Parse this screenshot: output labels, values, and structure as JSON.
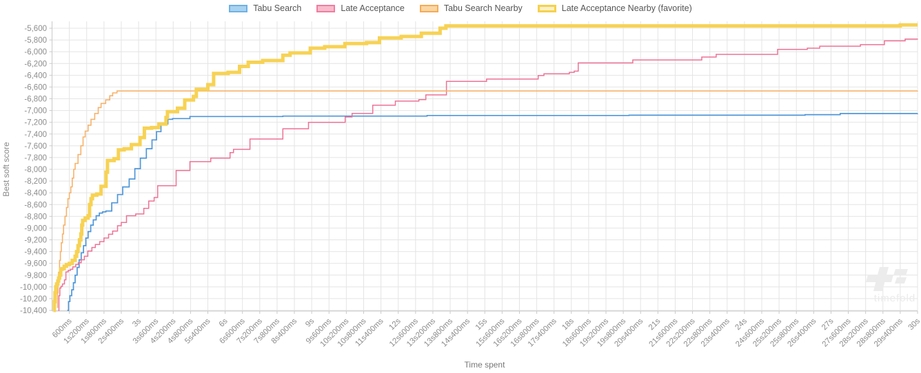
{
  "chart_data": {
    "type": "line",
    "title": "",
    "xlabel": "Time spent",
    "ylabel": "Best soft score",
    "grid": true,
    "legend_position": "top",
    "xlim_ms": [
      0,
      30000
    ],
    "ylim": [
      -10400,
      -5600
    ],
    "y_tick_step": 200,
    "y_ticks": [
      "-5,600",
      "-5,800",
      "-6,000",
      "-6,200",
      "-6,400",
      "-6,600",
      "-6,800",
      "-7,000",
      "-7,200",
      "-7,400",
      "-7,600",
      "-7,800",
      "-8,000",
      "-8,200",
      "-8,400",
      "-8,600",
      "-8,800",
      "-9,000",
      "-9,200",
      "-9,400",
      "-9,600",
      "-9,800",
      "-10,000",
      "-10,200",
      "-10,400"
    ],
    "y_tick_values": [
      -5600,
      -5800,
      -6000,
      -6200,
      -6400,
      -6600,
      -6800,
      -7000,
      -7200,
      -7400,
      -7600,
      -7800,
      -8000,
      -8200,
      -8400,
      -8600,
      -8800,
      -9000,
      -9200,
      -9400,
      -9600,
      -9800,
      -10000,
      -10200,
      -10400
    ],
    "x_ticks": [
      "600ms",
      "1s200ms",
      "1s800ms",
      "2s400ms",
      "3s",
      "3s600ms",
      "4s200ms",
      "4s800ms",
      "5s400ms",
      "6s",
      "6s600ms",
      "7s200ms",
      "7s800ms",
      "8s400ms",
      "9s",
      "9s600ms",
      "10s200ms",
      "10s800ms",
      "11s400ms",
      "12s",
      "12s600ms",
      "13s200ms",
      "13s800ms",
      "14s400ms",
      "15s",
      "15s600ms",
      "16s200ms",
      "16s800ms",
      "17s400ms",
      "18s",
      "18s600ms",
      "19s200ms",
      "19s800ms",
      "20s400ms",
      "21s",
      "21s600ms",
      "22s200ms",
      "22s800ms",
      "23s400ms",
      "24s",
      "24s600ms",
      "25s200ms",
      "25s800ms",
      "26s400ms",
      "27s",
      "27s600ms",
      "28s200ms",
      "28s800ms",
      "29s400ms",
      "30s"
    ],
    "x_tick_values_ms": [
      600,
      1200,
      1800,
      2400,
      3000,
      3600,
      4200,
      4800,
      5400,
      6000,
      6600,
      7200,
      7800,
      8400,
      9000,
      9600,
      10200,
      10800,
      11400,
      12000,
      12600,
      13200,
      13800,
      14400,
      15000,
      15600,
      16200,
      16800,
      17400,
      18000,
      18600,
      19200,
      19800,
      20400,
      21000,
      21600,
      22200,
      22800,
      23400,
      24000,
      24600,
      25200,
      25800,
      26400,
      27000,
      27600,
      28200,
      28800,
      29400,
      30000
    ],
    "series": [
      {
        "name": "Tabu Search",
        "color": "#4e96d9",
        "legend_fill": "#a8d2f0",
        "legend_border": "#6fb1e4",
        "line_width": 1.7,
        "favorite": false,
        "points": [
          [
            530,
            -10400
          ],
          [
            570,
            -10250
          ],
          [
            620,
            -10150
          ],
          [
            680,
            -10050
          ],
          [
            740,
            -9930
          ],
          [
            800,
            -9800
          ],
          [
            870,
            -9670
          ],
          [
            940,
            -9540
          ],
          [
            1010,
            -9420
          ],
          [
            1090,
            -9300
          ],
          [
            1170,
            -9170
          ],
          [
            1250,
            -9060
          ],
          [
            1340,
            -8950
          ],
          [
            1430,
            -8860
          ],
          [
            1530,
            -8790
          ],
          [
            1640,
            -8745
          ],
          [
            1750,
            -8725
          ],
          [
            1865,
            -8710
          ],
          [
            2070,
            -8570
          ],
          [
            2270,
            -8430
          ],
          [
            2450,
            -8300
          ],
          [
            2675,
            -8165
          ],
          [
            2870,
            -7990
          ],
          [
            3060,
            -7810
          ],
          [
            3270,
            -7650
          ],
          [
            3465,
            -7500
          ],
          [
            3620,
            -7360
          ],
          [
            3775,
            -7230
          ],
          [
            4015,
            -7150
          ],
          [
            4180,
            -7137
          ],
          [
            4780,
            -7102
          ],
          [
            8000,
            -7095
          ],
          [
            13000,
            -7085
          ],
          [
            20000,
            -7080
          ],
          [
            26100,
            -7070
          ],
          [
            27320,
            -7052
          ],
          [
            30000,
            -7050
          ]
        ]
      },
      {
        "name": "Late Acceptance",
        "color": "#ee7295",
        "legend_fill": "#f9bccd",
        "legend_border": "#f07da0",
        "line_width": 1.5,
        "favorite": false,
        "points": [
          [
            215,
            -10400
          ],
          [
            240,
            -10150
          ],
          [
            270,
            -10020
          ],
          [
            310,
            -9990
          ],
          [
            360,
            -9950
          ],
          [
            430,
            -9880
          ],
          [
            480,
            -9745
          ],
          [
            560,
            -9720
          ],
          [
            640,
            -9700
          ],
          [
            720,
            -9660
          ],
          [
            820,
            -9620
          ],
          [
            910,
            -9590
          ],
          [
            1010,
            -9540
          ],
          [
            1120,
            -9480
          ],
          [
            1240,
            -9390
          ],
          [
            1380,
            -9330
          ],
          [
            1500,
            -9280
          ],
          [
            1650,
            -9230
          ],
          [
            1800,
            -9170
          ],
          [
            1960,
            -9105
          ],
          [
            2100,
            -9050
          ],
          [
            2270,
            -8960
          ],
          [
            2400,
            -8905
          ],
          [
            2580,
            -8790
          ],
          [
            2900,
            -8760
          ],
          [
            3180,
            -8665
          ],
          [
            3350,
            -8540
          ],
          [
            3540,
            -8480
          ],
          [
            3660,
            -8280
          ],
          [
            4300,
            -8020
          ],
          [
            4780,
            -7870
          ],
          [
            5500,
            -7810
          ],
          [
            6170,
            -7715
          ],
          [
            6290,
            -7660
          ],
          [
            6860,
            -7485
          ],
          [
            8000,
            -7310
          ],
          [
            8890,
            -7200
          ],
          [
            10160,
            -7110
          ],
          [
            10400,
            -7050
          ],
          [
            11115,
            -6910
          ],
          [
            11900,
            -6840
          ],
          [
            12715,
            -6815
          ],
          [
            12955,
            -6735
          ],
          [
            13670,
            -6505
          ],
          [
            15060,
            -6465
          ],
          [
            16850,
            -6405
          ],
          [
            17050,
            -6375
          ],
          [
            17930,
            -6350
          ],
          [
            18100,
            -6330
          ],
          [
            18240,
            -6190
          ],
          [
            20130,
            -6140
          ],
          [
            22520,
            -6090
          ],
          [
            23020,
            -6045
          ],
          [
            25150,
            -5960
          ],
          [
            26180,
            -5940
          ],
          [
            26610,
            -5905
          ],
          [
            28020,
            -5880
          ],
          [
            28850,
            -5815
          ],
          [
            29570,
            -5785
          ],
          [
            30000,
            -5780
          ]
        ]
      },
      {
        "name": "Tabu Search Nearby",
        "color": "#f6b26b",
        "legend_fill": "#fbd6a4",
        "legend_border": "#f6ab55",
        "line_width": 1.6,
        "favorite": false,
        "points": [
          [
            170,
            -10350
          ],
          [
            190,
            -10100
          ],
          [
            210,
            -9900
          ],
          [
            230,
            -9750
          ],
          [
            260,
            -9550
          ],
          [
            290,
            -9400
          ],
          [
            320,
            -9250
          ],
          [
            360,
            -9100
          ],
          [
            400,
            -8950
          ],
          [
            450,
            -8800
          ],
          [
            500,
            -8650
          ],
          [
            550,
            -8500
          ],
          [
            600,
            -8400
          ],
          [
            650,
            -8300
          ],
          [
            700,
            -8150
          ],
          [
            750,
            -8000
          ],
          [
            800,
            -7900
          ],
          [
            900,
            -7750
          ],
          [
            1000,
            -7600
          ],
          [
            1075,
            -7450
          ],
          [
            1150,
            -7350
          ],
          [
            1250,
            -7250
          ],
          [
            1350,
            -7150
          ],
          [
            1480,
            -7050
          ],
          [
            1600,
            -6950
          ],
          [
            1700,
            -6880
          ],
          [
            1860,
            -6820
          ],
          [
            2000,
            -6750
          ],
          [
            2100,
            -6700
          ],
          [
            2250,
            -6668
          ],
          [
            30000,
            -6665
          ]
        ]
      },
      {
        "name": "Late Acceptance Nearby (favorite)",
        "color": "#f7d254",
        "legend_fill": "#faf0c8",
        "legend_border": "#f6d14b",
        "line_width": 5,
        "favorite": true,
        "points": [
          [
            50,
            -10400
          ],
          [
            80,
            -10250
          ],
          [
            100,
            -10100
          ],
          [
            130,
            -10000
          ],
          [
            160,
            -9950
          ],
          [
            200,
            -9900
          ],
          [
            230,
            -9850
          ],
          [
            260,
            -9800
          ],
          [
            300,
            -9700
          ],
          [
            350,
            -9690
          ],
          [
            420,
            -9650
          ],
          [
            500,
            -9620
          ],
          [
            600,
            -9600
          ],
          [
            700,
            -9550
          ],
          [
            800,
            -9480
          ],
          [
            850,
            -9400
          ],
          [
            900,
            -9300
          ],
          [
            950,
            -9200
          ],
          [
            1000,
            -9100
          ],
          [
            1030,
            -8950
          ],
          [
            1060,
            -8870
          ],
          [
            1150,
            -8830
          ],
          [
            1250,
            -8790
          ],
          [
            1300,
            -8600
          ],
          [
            1350,
            -8500
          ],
          [
            1400,
            -8440
          ],
          [
            1550,
            -8420
          ],
          [
            1700,
            -8290
          ],
          [
            1870,
            -8050
          ],
          [
            1920,
            -7850
          ],
          [
            2150,
            -7820
          ],
          [
            2300,
            -7670
          ],
          [
            2500,
            -7650
          ],
          [
            2750,
            -7580
          ],
          [
            3050,
            -7460
          ],
          [
            3200,
            -7300
          ],
          [
            3450,
            -7290
          ],
          [
            3700,
            -7230
          ],
          [
            3950,
            -7120
          ],
          [
            4000,
            -7020
          ],
          [
            4350,
            -6960
          ],
          [
            4600,
            -6820
          ],
          [
            4900,
            -6760
          ],
          [
            5000,
            -6640
          ],
          [
            5400,
            -6560
          ],
          [
            5600,
            -6370
          ],
          [
            6100,
            -6350
          ],
          [
            6500,
            -6250
          ],
          [
            6800,
            -6180
          ],
          [
            7300,
            -6150
          ],
          [
            8000,
            -6060
          ],
          [
            8250,
            -6020
          ],
          [
            8950,
            -5940
          ],
          [
            9450,
            -5915
          ],
          [
            10150,
            -5860
          ],
          [
            10900,
            -5845
          ],
          [
            11350,
            -5765
          ],
          [
            12100,
            -5740
          ],
          [
            12800,
            -5685
          ],
          [
            13450,
            -5600
          ],
          [
            13650,
            -5560
          ],
          [
            29400,
            -5545
          ],
          [
            30000,
            -5545
          ]
        ]
      }
    ]
  },
  "watermark": {
    "text": "timefold"
  },
  "style_colors": {
    "grid": "#e4e4e4",
    "axis_line": "#c9c9c9",
    "tick_label": "#8c8c8c",
    "axis_title": "#8a8a8a",
    "legend_text": "#555555",
    "watermark": "#ececec"
  }
}
